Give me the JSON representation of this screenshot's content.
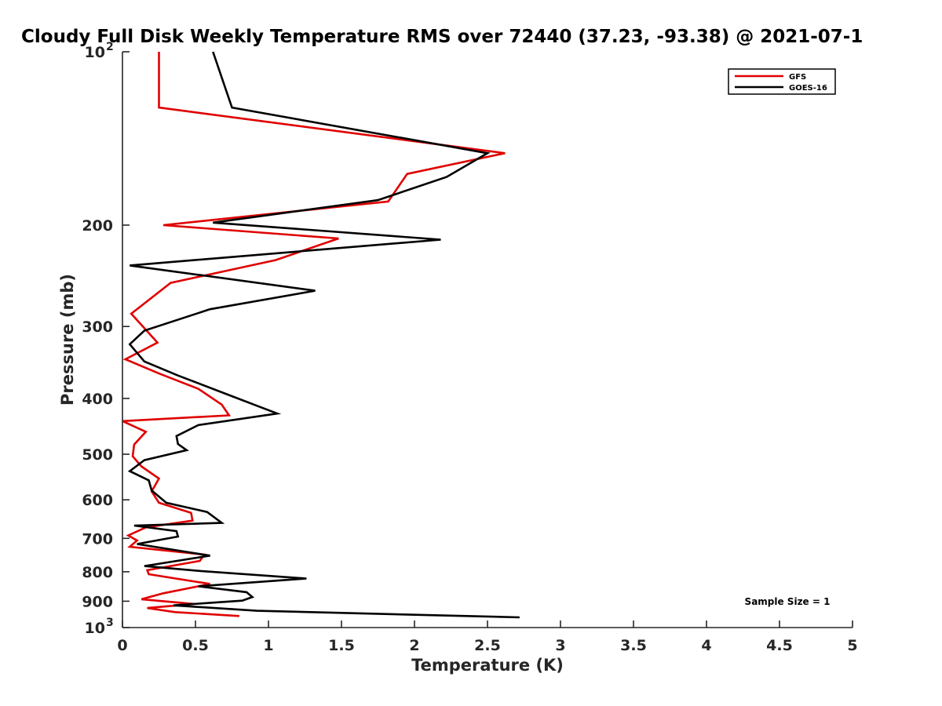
{
  "chart_data": {
    "type": "line",
    "title": "Cloudy Full Disk Weekly Temperature RMS over 72440 (37.23, -93.38) @ 2021-07-1",
    "xlabel": "Temperature (K)",
    "ylabel": "Pressure (mb)",
    "xlim": [
      0,
      5
    ],
    "ylim": [
      100,
      1000
    ],
    "y_scale": "log",
    "y_reversed": true,
    "grid": false,
    "legend_position": "top-right",
    "x_ticks": [
      "0",
      "0.5",
      "1",
      "1.5",
      "2",
      "2.5",
      "3",
      "3.5",
      "4",
      "4.5",
      "5"
    ],
    "x_tick_values": [
      0,
      0.5,
      1,
      1.5,
      2,
      2.5,
      3,
      3.5,
      4,
      4.5,
      5
    ],
    "y_ticks": [
      {
        "value": 100,
        "base": "10",
        "exp": "2"
      },
      {
        "value": 200,
        "base": "200",
        "exp": ""
      },
      {
        "value": 300,
        "base": "300",
        "exp": ""
      },
      {
        "value": 400,
        "base": "400",
        "exp": ""
      },
      {
        "value": 500,
        "base": "500",
        "exp": ""
      },
      {
        "value": 600,
        "base": "600",
        "exp": ""
      },
      {
        "value": 700,
        "base": "700",
        "exp": ""
      },
      {
        "value": 800,
        "base": "800",
        "exp": ""
      },
      {
        "value": 900,
        "base": "900",
        "exp": ""
      },
      {
        "value": 1000,
        "base": "10",
        "exp": "3"
      }
    ],
    "annotation": "Sample Size = 1",
    "series": [
      {
        "name": "GFS",
        "color": "#e00000",
        "points": [
          [
            0.25,
            100
          ],
          [
            0.25,
            125
          ],
          [
            2.62,
            150
          ],
          [
            1.95,
            163
          ],
          [
            1.82,
            182
          ],
          [
            0.28,
            200
          ],
          [
            1.48,
            211
          ],
          [
            1.05,
            230
          ],
          [
            0.33,
            252
          ],
          [
            0.06,
            285
          ],
          [
            0.24,
            320
          ],
          [
            0.02,
            342
          ],
          [
            0.25,
            362
          ],
          [
            0.52,
            385
          ],
          [
            0.68,
            410
          ],
          [
            0.73,
            428
          ],
          [
            0.0,
            438
          ],
          [
            0.16,
            457
          ],
          [
            0.08,
            481
          ],
          [
            0.07,
            504
          ],
          [
            0.13,
            525
          ],
          [
            0.25,
            551
          ],
          [
            0.2,
            580
          ],
          [
            0.25,
            607
          ],
          [
            0.47,
            632
          ],
          [
            0.48,
            652
          ],
          [
            0.16,
            670
          ],
          [
            0.04,
            692
          ],
          [
            0.1,
            706
          ],
          [
            0.05,
            724
          ],
          [
            0.56,
            747
          ],
          [
            0.53,
            766
          ],
          [
            0.17,
            795
          ],
          [
            0.18,
            808
          ],
          [
            0.6,
            840
          ],
          [
            0.28,
            872
          ],
          [
            0.13,
            893
          ],
          [
            0.49,
            910
          ],
          [
            0.17,
            925
          ],
          [
            0.36,
            940
          ],
          [
            0.8,
            955
          ]
        ]
      },
      {
        "name": "GOES-16",
        "color": "#000000",
        "points": [
          [
            0.62,
            100
          ],
          [
            0.75,
            125
          ],
          [
            2.5,
            150
          ],
          [
            2.22,
            165
          ],
          [
            1.75,
            181
          ],
          [
            0.62,
            198
          ],
          [
            2.18,
            212
          ],
          [
            0.05,
            235
          ],
          [
            1.32,
            260
          ],
          [
            0.6,
            280
          ],
          [
            0.15,
            305
          ],
          [
            0.05,
            322
          ],
          [
            0.15,
            345
          ],
          [
            0.38,
            365
          ],
          [
            0.7,
            392
          ],
          [
            1.06,
            425
          ],
          [
            0.52,
            445
          ],
          [
            0.37,
            465
          ],
          [
            0.38,
            480
          ],
          [
            0.44,
            492
          ],
          [
            0.15,
            512
          ],
          [
            0.05,
            535
          ],
          [
            0.18,
            555
          ],
          [
            0.2,
            578
          ],
          [
            0.3,
            607
          ],
          [
            0.58,
            630
          ],
          [
            0.68,
            658
          ],
          [
            0.08,
            665
          ],
          [
            0.37,
            680
          ],
          [
            0.38,
            695
          ],
          [
            0.1,
            716
          ],
          [
            0.6,
            750
          ],
          [
            0.15,
            782
          ],
          [
            0.52,
            797
          ],
          [
            1.26,
            822
          ],
          [
            0.52,
            848
          ],
          [
            0.85,
            868
          ],
          [
            0.89,
            885
          ],
          [
            0.82,
            898
          ],
          [
            0.35,
            915
          ],
          [
            0.92,
            935
          ],
          [
            2.72,
            960
          ]
        ]
      }
    ]
  }
}
